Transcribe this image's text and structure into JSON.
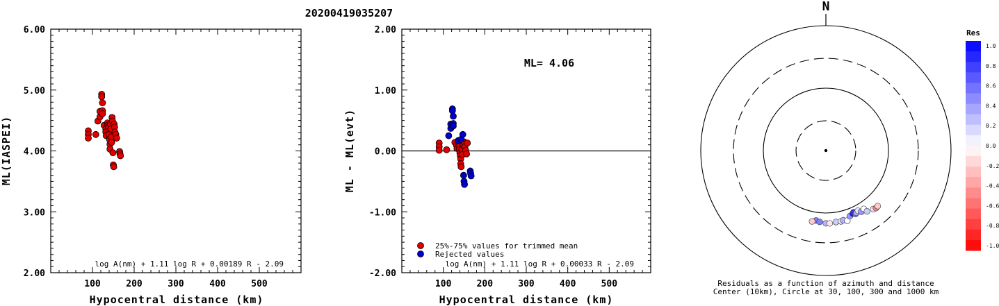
{
  "title": "20200419035207",
  "charts": [
    {
      "id": "left",
      "type": "scatter",
      "ylabel": "ML(IASPEI)",
      "xlabel": "Hypocentral distance (km)",
      "xlim": [
        0,
        600
      ],
      "ylim": [
        2.0,
        6.0
      ],
      "xticks": [
        100,
        200,
        300,
        400,
        500
      ],
      "yticks": [
        "2.00",
        "3.00",
        "4.00",
        "5.00",
        "6.00"
      ],
      "formula": "log A(nm) + 1.11 log R + 0.00189 R - 2.09",
      "color": "#e00000",
      "points": [
        [
          90,
          4.33
        ],
        [
          90,
          4.27
        ],
        [
          90,
          4.21
        ],
        [
          108,
          4.27
        ],
        [
          113,
          4.49
        ],
        [
          118,
          4.56
        ],
        [
          118,
          4.65
        ],
        [
          122,
          4.93
        ],
        [
          122,
          4.89
        ],
        [
          124,
          4.79
        ],
        [
          124,
          4.66
        ],
        [
          124,
          4.61
        ],
        [
          128,
          4.42
        ],
        [
          132,
          4.36
        ],
        [
          132,
          4.31
        ],
        [
          133,
          4.25
        ],
        [
          136,
          4.46
        ],
        [
          137,
          4.42
        ],
        [
          138,
          4.39
        ],
        [
          139,
          4.32
        ],
        [
          140,
          4.27
        ],
        [
          141,
          4.19
        ],
        [
          142,
          4.11
        ],
        [
          142,
          4.03
        ],
        [
          143,
          4.44
        ],
        [
          144,
          4.36
        ],
        [
          145,
          4.23
        ],
        [
          146,
          4.14
        ],
        [
          147,
          4.55
        ],
        [
          148,
          4.49
        ],
        [
          149,
          3.97
        ],
        [
          150,
          3.77
        ],
        [
          151,
          3.74
        ],
        [
          152,
          4.44
        ],
        [
          153,
          4.39
        ],
        [
          154,
          4.31
        ],
        [
          156,
          4.27
        ],
        [
          158,
          4.21
        ],
        [
          165,
          3.99
        ],
        [
          166,
          3.95
        ],
        [
          167,
          3.92
        ]
      ]
    },
    {
      "id": "mid",
      "type": "scatter",
      "ylabel": "ML - ML(evt)",
      "xlabel": "Hypocentral distance (km)",
      "xlim": [
        0,
        600
      ],
      "ylim": [
        -2.0,
        2.0
      ],
      "xticks": [
        100,
        200,
        300,
        400,
        500
      ],
      "yticks": [
        "-2.00",
        "-1.00",
        "0.00",
        "1.00",
        "2.00"
      ],
      "ml_label": "ML= 4.06",
      "formula": "log A(nm) + 1.11 log R + 0.00033 R - 2.09",
      "legend": [
        {
          "label": "25%-75% values for trimmed mean",
          "color": "#e00000"
        },
        {
          "label": "Rejected values",
          "color": "#0000d0"
        }
      ],
      "points_trimmed": [
        [
          90,
          0.13
        ],
        [
          90,
          0.07
        ],
        [
          90,
          0.01
        ],
        [
          108,
          0.02
        ],
        [
          128,
          0.14
        ],
        [
          132,
          0.09
        ],
        [
          133,
          0.04
        ],
        [
          137,
          0.12
        ],
        [
          138,
          0.08
        ],
        [
          139,
          0.03
        ],
        [
          140,
          -0.03
        ],
        [
          141,
          -0.08
        ],
        [
          142,
          -0.13
        ],
        [
          142,
          -0.21
        ],
        [
          143,
          -0.26
        ],
        [
          145,
          0.02
        ],
        [
          146,
          -0.06
        ],
        [
          148,
          0.1
        ],
        [
          150,
          0.15
        ],
        [
          152,
          0.07
        ],
        [
          154,
          0.01
        ],
        [
          156,
          -0.05
        ],
        [
          158,
          0.13
        ]
      ],
      "points_rejected": [
        [
          113,
          0.25
        ],
        [
          118,
          0.37
        ],
        [
          118,
          0.44
        ],
        [
          122,
          0.69
        ],
        [
          122,
          0.66
        ],
        [
          124,
          0.57
        ],
        [
          124,
          0.45
        ],
        [
          124,
          0.41
        ],
        [
          136,
          0.17
        ],
        [
          143,
          0.19
        ],
        [
          147,
          0.27
        ],
        [
          149,
          -0.4
        ],
        [
          150,
          -0.5
        ],
        [
          151,
          -0.55
        ],
        [
          165,
          -0.33
        ],
        [
          166,
          -0.37
        ],
        [
          167,
          -0.41
        ]
      ]
    }
  ],
  "polar": {
    "north_label": "N",
    "caption_line1": "Residuals as a function of azimuth and distance",
    "caption_line2": "Center (10km), Circle at 30, 100, 300 and 1000 km",
    "rings_km": [
      30,
      100,
      300,
      1000
    ],
    "stations": [
      {
        "az": 188,
        "dist": 135,
        "res": 0.5
      },
      {
        "az": 191,
        "dist": 143,
        "res": -0.2
      },
      {
        "az": 185,
        "dist": 140,
        "res": 0.5
      },
      {
        "az": 180,
        "dist": 146,
        "res": 0.3
      },
      {
        "az": 177,
        "dist": 147,
        "res": -0.1
      },
      {
        "az": 172,
        "dist": 143,
        "res": 0.2
      },
      {
        "az": 168,
        "dist": 144,
        "res": 0.1
      },
      {
        "az": 166,
        "dist": 141,
        "res": 0.3
      },
      {
        "az": 163,
        "dist": 149,
        "res": 0.0
      },
      {
        "az": 160,
        "dist": 131,
        "res": 0.4
      },
      {
        "az": 157,
        "dist": 125,
        "res": 0.9
      },
      {
        "az": 156,
        "dist": 121,
        "res": 0.8
      },
      {
        "az": 155,
        "dist": 132,
        "res": 0.5
      },
      {
        "az": 154,
        "dist": 128,
        "res": 0.3
      },
      {
        "az": 152,
        "dist": 123,
        "res": 0.1
      },
      {
        "az": 150,
        "dist": 135,
        "res": 0.4
      },
      {
        "az": 147,
        "dist": 130,
        "res": 0.0
      },
      {
        "az": 146,
        "dist": 149,
        "res": 0.2
      },
      {
        "az": 141,
        "dist": 160,
        "res": 0.1
      },
      {
        "az": 139,
        "dist": 166,
        "res": -0.5
      },
      {
        "az": 137,
        "dist": 164,
        "res": -0.2
      }
    ]
  },
  "colorbar": {
    "title": "Res",
    "labels": [
      "1.0",
      "0.8",
      "0.6",
      "0.4",
      "0.2",
      "0.0",
      "-0.2",
      "-0.4",
      "-0.6",
      "-0.8",
      "-1.0"
    ]
  }
}
